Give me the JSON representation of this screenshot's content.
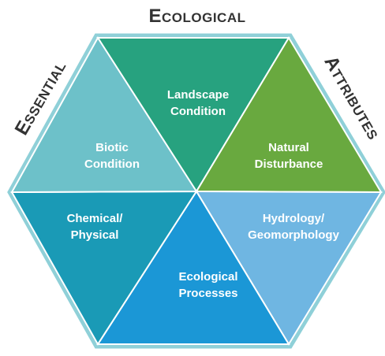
{
  "header": {
    "top": "Ecological",
    "left": "Essential",
    "right": "Attributes"
  },
  "nodes": [
    {
      "label_lines": [
        "Landscape",
        "Condition"
      ]
    },
    {
      "label_lines": [
        "Natural",
        "Disturbance"
      ]
    },
    {
      "label_lines": [
        "Hydrology/",
        "Geomorphology"
      ]
    },
    {
      "label_lines": [
        "Ecological",
        "Processes"
      ]
    },
    {
      "label_lines": [
        "Chemical/",
        "Physical"
      ]
    },
    {
      "label_lines": [
        "Biotic",
        "Condition"
      ]
    }
  ]
}
